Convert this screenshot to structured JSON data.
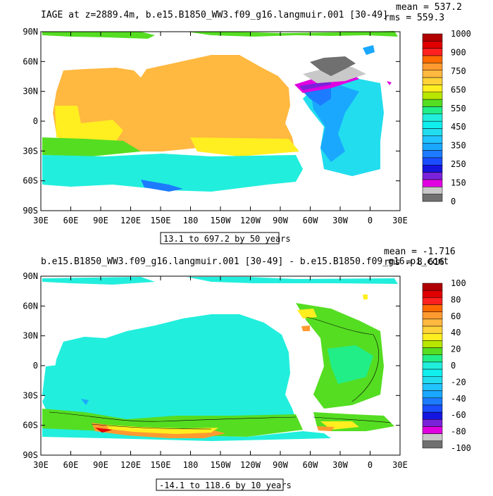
{
  "panels": [
    {
      "title": "IAGE at z=2889.4m, b.e15.B1850_WW3.f09_g16.langmuir.001 [30-49]",
      "mean_text": "mean = 537.2",
      "rms_text": "rms = 559.3",
      "range_text": "13.1 to 697.2 by 50 years"
    },
    {
      "title": "b.e15.B1850_WW3.f09_g16.langmuir.001 [30-49] - b.e15.B1850.f09_g16.pi_cont",
      "mean_text": "mean = -1.716",
      "rms_text": "rms = 8.616",
      "range_text": "-14.1 to 118.6 by 10 years"
    }
  ],
  "chart_data": [
    {
      "type": "heatmap",
      "title": "IAGE at z=2889.4m, b.e15.B1850_WW3.f09_g16.langmuir.001 [30-49]",
      "x_ticks": [
        "30E",
        "60E",
        "90E",
        "120E",
        "150E",
        "180",
        "150W",
        "120W",
        "90W",
        "60W",
        "30W",
        "0",
        "30E"
      ],
      "y_ticks": [
        "90N",
        "60N",
        "30N",
        "0",
        "30S",
        "60S",
        "90S"
      ],
      "colorbar_labels": [
        "1000",
        "900",
        "750",
        "650",
        "550",
        "450",
        "350",
        "250",
        "150",
        "0"
      ],
      "colorbar_colors": [
        "#b00000",
        "#e00000",
        "#ff2020",
        "#ff6a00",
        "#ff9a30",
        "#ffb840",
        "#ffd23a",
        "#ffee20",
        "#b8e600",
        "#55dd22",
        "#22ee88",
        "#22eedd",
        "#11eeee",
        "#22ddee",
        "#22c4ff",
        "#1aa8ff",
        "#1d7bff",
        "#1a4dff",
        "#1515e0",
        "#7a22d9",
        "#e000e0",
        "#c8c8c8",
        "#707070"
      ],
      "mean": 537.2,
      "rms": 559.3,
      "contour_min": 13.1,
      "contour_max": 697.2,
      "contour_interval": 50,
      "units": "years"
    },
    {
      "type": "heatmap",
      "title": "b.e15.B1850_WW3.f09_g16.langmuir.001 [30-49] - b.e15.B1850.f09_g16.pi_cont",
      "x_ticks": [
        "30E",
        "60E",
        "90E",
        "120E",
        "150E",
        "180",
        "150W",
        "120W",
        "90W",
        "60W",
        "30W",
        "0",
        "30E"
      ],
      "y_ticks": [
        "90N",
        "60N",
        "30N",
        "0",
        "30S",
        "60S",
        "90S"
      ],
      "colorbar_labels": [
        "100",
        "80",
        "60",
        "40",
        "20",
        "0",
        "-20",
        "-40",
        "-60",
        "-80",
        "-100"
      ],
      "colorbar_colors": [
        "#b00000",
        "#e00000",
        "#ff2020",
        "#ff6a00",
        "#ff9a30",
        "#ffb840",
        "#ffd23a",
        "#ffee20",
        "#b8e600",
        "#55dd22",
        "#22ee88",
        "#22eedd",
        "#11eeee",
        "#22ddee",
        "#22c4ff",
        "#1aa8ff",
        "#1d7bff",
        "#1a4dff",
        "#1515e0",
        "#7a22d9",
        "#e000e0",
        "#c8c8c8",
        "#707070"
      ],
      "mean": -1.716,
      "rms": 8.616,
      "contour_min": -14.1,
      "contour_max": 118.6,
      "contour_interval": 10,
      "units": "years"
    }
  ]
}
